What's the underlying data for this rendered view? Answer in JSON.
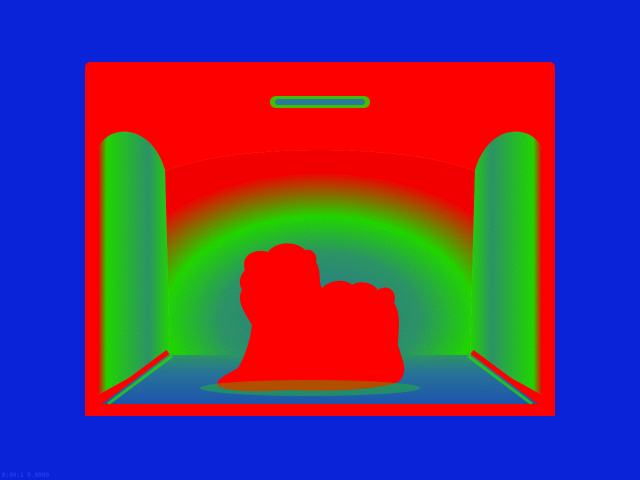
{
  "image": {
    "background_color": "#0a23d8",
    "palette": {
      "hot": "#ff0000",
      "warm": "#22e000",
      "cool": "#2a7a9e",
      "cold": "#0a23d8"
    },
    "footer_label": "0:00:1 0.0000"
  }
}
